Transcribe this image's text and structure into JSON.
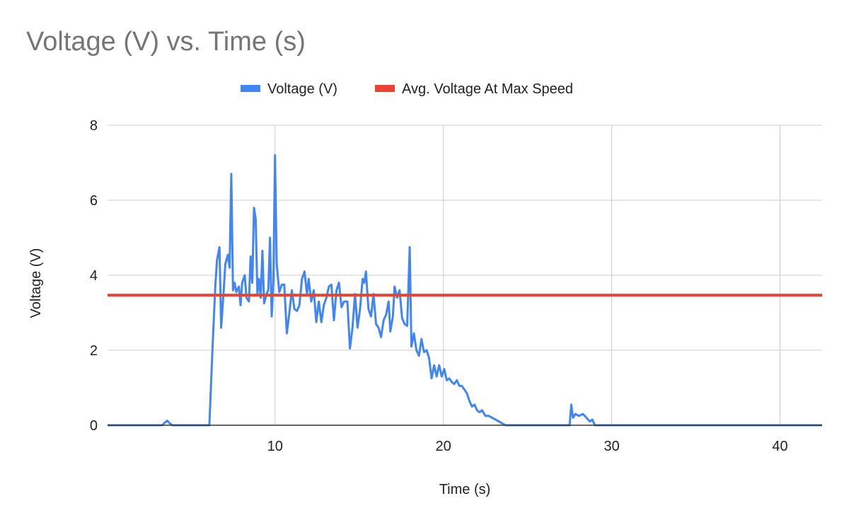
{
  "chart_data": {
    "type": "line",
    "title": "Voltage (V) vs. Time (s)",
    "xlabel": "Time (s)",
    "ylabel": "Voltage (V)",
    "xlim": [
      0.05,
      42.5
    ],
    "ylim": [
      0,
      8
    ],
    "x_ticks": [
      10,
      20,
      30,
      40
    ],
    "y_ticks": [
      0,
      2,
      4,
      6,
      8
    ],
    "grid": true,
    "legend_position": "top",
    "series": [
      {
        "name": "Voltage (V)",
        "color": "#4285f4",
        "points": [
          [
            0.05,
            0
          ],
          [
            3.3,
            0
          ],
          [
            3.45,
            0.07
          ],
          [
            3.6,
            0.12
          ],
          [
            3.75,
            0.05
          ],
          [
            3.9,
            0
          ],
          [
            6.1,
            0
          ],
          [
            6.3,
            2.2
          ],
          [
            6.45,
            3.7
          ],
          [
            6.55,
            4.4
          ],
          [
            6.7,
            4.75
          ],
          [
            6.8,
            2.6
          ],
          [
            6.95,
            3.6
          ],
          [
            7.05,
            4.3
          ],
          [
            7.2,
            4.55
          ],
          [
            7.3,
            4.2
          ],
          [
            7.4,
            6.7
          ],
          [
            7.5,
            3.6
          ],
          [
            7.6,
            3.8
          ],
          [
            7.7,
            3.55
          ],
          [
            7.85,
            3.7
          ],
          [
            7.95,
            3.2
          ],
          [
            8.05,
            3.8
          ],
          [
            8.2,
            4.0
          ],
          [
            8.3,
            3.4
          ],
          [
            8.45,
            3.3
          ],
          [
            8.55,
            4.5
          ],
          [
            8.65,
            3.8
          ],
          [
            8.75,
            5.8
          ],
          [
            8.85,
            5.5
          ],
          [
            8.95,
            3.5
          ],
          [
            9.05,
            3.9
          ],
          [
            9.15,
            3.4
          ],
          [
            9.25,
            4.65
          ],
          [
            9.35,
            3.25
          ],
          [
            9.5,
            3.5
          ],
          [
            9.6,
            3.6
          ],
          [
            9.7,
            5.0
          ],
          [
            9.8,
            2.9
          ],
          [
            9.9,
            3.8
          ],
          [
            10.0,
            7.2
          ],
          [
            10.1,
            4.3
          ],
          [
            10.25,
            3.55
          ],
          [
            10.4,
            3.75
          ],
          [
            10.55,
            3.75
          ],
          [
            10.7,
            2.45
          ],
          [
            10.85,
            3.0
          ],
          [
            11.0,
            3.6
          ],
          [
            11.15,
            3.1
          ],
          [
            11.3,
            3.05
          ],
          [
            11.45,
            3.2
          ],
          [
            11.6,
            3.9
          ],
          [
            11.75,
            4.1
          ],
          [
            11.9,
            3.5
          ],
          [
            12.0,
            3.9
          ],
          [
            12.15,
            3.3
          ],
          [
            12.3,
            3.6
          ],
          [
            12.45,
            2.75
          ],
          [
            12.6,
            3.3
          ],
          [
            12.75,
            2.75
          ],
          [
            12.9,
            3.2
          ],
          [
            13.05,
            3.4
          ],
          [
            13.2,
            3.7
          ],
          [
            13.35,
            3.75
          ],
          [
            13.5,
            2.8
          ],
          [
            13.65,
            3.6
          ],
          [
            13.8,
            3.8
          ],
          [
            13.95,
            3.15
          ],
          [
            14.1,
            3.3
          ],
          [
            14.3,
            3.3
          ],
          [
            14.45,
            2.05
          ],
          [
            14.6,
            2.6
          ],
          [
            14.75,
            3.5
          ],
          [
            14.9,
            2.6
          ],
          [
            15.05,
            3.1
          ],
          [
            15.2,
            3.9
          ],
          [
            15.3,
            3.8
          ],
          [
            15.4,
            4.1
          ],
          [
            15.55,
            3.1
          ],
          [
            15.7,
            2.9
          ],
          [
            15.85,
            3.5
          ],
          [
            16.0,
            2.7
          ],
          [
            16.15,
            2.6
          ],
          [
            16.3,
            2.35
          ],
          [
            16.45,
            2.8
          ],
          [
            16.6,
            2.95
          ],
          [
            16.75,
            3.3
          ],
          [
            16.85,
            2.5
          ],
          [
            17.0,
            2.9
          ],
          [
            17.1,
            3.7
          ],
          [
            17.25,
            3.4
          ],
          [
            17.4,
            3.6
          ],
          [
            17.55,
            2.85
          ],
          [
            17.7,
            2.7
          ],
          [
            17.85,
            2.65
          ],
          [
            18.0,
            4.75
          ],
          [
            18.1,
            2.1
          ],
          [
            18.25,
            2.45
          ],
          [
            18.4,
            2.0
          ],
          [
            18.55,
            1.85
          ],
          [
            18.7,
            2.3
          ],
          [
            18.85,
            1.95
          ],
          [
            19.0,
            2.0
          ],
          [
            19.15,
            1.8
          ],
          [
            19.3,
            1.25
          ],
          [
            19.45,
            1.6
          ],
          [
            19.6,
            1.3
          ],
          [
            19.75,
            1.6
          ],
          [
            19.9,
            1.3
          ],
          [
            20.05,
            1.5
          ],
          [
            20.2,
            1.2
          ],
          [
            20.35,
            1.25
          ],
          [
            20.5,
            1.15
          ],
          [
            20.65,
            1.1
          ],
          [
            20.8,
            1.2
          ],
          [
            20.95,
            1.05
          ],
          [
            21.1,
            1.05
          ],
          [
            21.25,
            0.95
          ],
          [
            21.4,
            0.85
          ],
          [
            21.55,
            0.65
          ],
          [
            21.7,
            0.5
          ],
          [
            21.85,
            0.55
          ],
          [
            22.0,
            0.4
          ],
          [
            22.15,
            0.35
          ],
          [
            22.3,
            0.4
          ],
          [
            22.5,
            0.25
          ],
          [
            22.7,
            0.25
          ],
          [
            22.9,
            0.2
          ],
          [
            23.1,
            0.15
          ],
          [
            23.3,
            0.1
          ],
          [
            23.5,
            0.05
          ],
          [
            23.7,
            0
          ],
          [
            27.5,
            0
          ],
          [
            27.6,
            0.55
          ],
          [
            27.7,
            0.2
          ],
          [
            27.85,
            0.3
          ],
          [
            28.05,
            0.25
          ],
          [
            28.3,
            0.3
          ],
          [
            28.5,
            0.2
          ],
          [
            28.7,
            0.1
          ],
          [
            28.85,
            0.15
          ],
          [
            29.0,
            0
          ],
          [
            42.5,
            0
          ]
        ]
      },
      {
        "name": "Avg. Voltage At Max Speed",
        "color": "#ea4335",
        "points": [
          [
            0.05,
            3.47
          ],
          [
            42.5,
            3.47
          ]
        ]
      }
    ]
  }
}
